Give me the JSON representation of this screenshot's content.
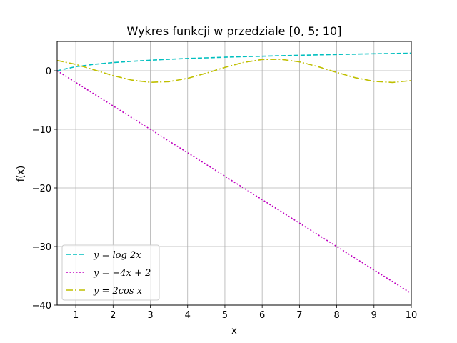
{
  "chart_data": {
    "type": "line",
    "title": "Wykres funkcji w przedziale [0, 5; 10]",
    "xlabel": "x",
    "ylabel": "f(x)",
    "xlim": [
      0.5,
      10
    ],
    "ylim": [
      -40,
      5
    ],
    "xticks": [
      1,
      2,
      3,
      4,
      5,
      6,
      7,
      8,
      9,
      10
    ],
    "yticks": [
      0,
      -10,
      -20,
      -30,
      -40
    ],
    "ytick_labels": [
      "0",
      "−10",
      "−20",
      "−30",
      "−40"
    ],
    "grid": true,
    "legend_position": "lower-left",
    "x": [
      0.5,
      1,
      1.5,
      2,
      2.5,
      3,
      3.5,
      4,
      4.5,
      5,
      5.5,
      6,
      6.5,
      7,
      7.5,
      8,
      8.5,
      9,
      9.5,
      10
    ],
    "series": [
      {
        "name": "y = log 2x",
        "color": "#00bfbf",
        "style": "dashed",
        "values": [
          0.0,
          0.69,
          1.1,
          1.39,
          1.61,
          1.79,
          1.95,
          2.08,
          2.2,
          2.3,
          2.4,
          2.48,
          2.56,
          2.64,
          2.71,
          2.77,
          2.83,
          2.89,
          2.94,
          3.0
        ]
      },
      {
        "name": "y = −4x + 2",
        "color": "#bf00bf",
        "style": "dotted",
        "values": [
          0,
          -2,
          -4,
          -6,
          -8,
          -10,
          -12,
          -14,
          -16,
          -18,
          -20,
          -22,
          -24,
          -26,
          -28,
          -30,
          -32,
          -34,
          -36,
          -38
        ]
      },
      {
        "name": "y = 2cos x",
        "color": "#bfbf00",
        "style": "dashdot",
        "values": [
          1.76,
          1.08,
          0.14,
          -0.83,
          -1.6,
          -1.98,
          -1.87,
          -1.31,
          -0.42,
          0.57,
          1.42,
          1.92,
          1.95,
          1.51,
          0.69,
          -0.29,
          -1.2,
          -1.82,
          -2.0,
          -1.68
        ]
      }
    ]
  }
}
